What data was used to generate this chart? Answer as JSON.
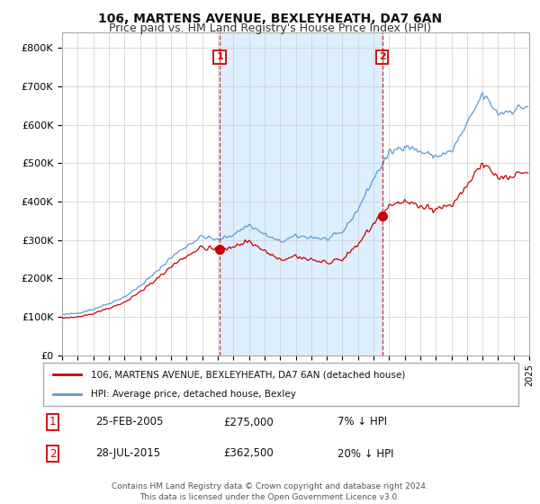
{
  "title": "106, MARTENS AVENUE, BEXLEYHEATH, DA7 6AN",
  "subtitle": "Price paid vs. HM Land Registry's House Price Index (HPI)",
  "background_color": "#ffffff",
  "plot_bg_color": "#ffffff",
  "grid_color": "#cccccc",
  "hpi_color": "#5b9bd5",
  "price_color": "#cc0000",
  "shade_color": "#ddeeff",
  "ylim": [
    0,
    840000
  ],
  "yticks": [
    0,
    100000,
    200000,
    300000,
    400000,
    500000,
    600000,
    700000,
    800000
  ],
  "ytick_labels": [
    "£0",
    "£100K",
    "£200K",
    "£300K",
    "£400K",
    "£500K",
    "£600K",
    "£700K",
    "£800K"
  ],
  "legend_label_price": "106, MARTENS AVENUE, BEXLEYHEATH, DA7 6AN (detached house)",
  "legend_label_hpi": "HPI: Average price, detached house, Bexley",
  "sale1_date": "25-FEB-2005",
  "sale1_price": "£275,000",
  "sale1_hpi": "7% ↓ HPI",
  "sale1_year": 2005.12,
  "sale1_value": 275000,
  "sale2_date": "28-JUL-2015",
  "sale2_price": "£362,500",
  "sale2_hpi": "20% ↓ HPI",
  "sale2_year": 2015.56,
  "sale2_value": 362500,
  "footer": "Contains HM Land Registry data © Crown copyright and database right 2024.\nThis data is licensed under the Open Government Licence v3.0.",
  "title_fontsize": 10,
  "subtitle_fontsize": 9
}
